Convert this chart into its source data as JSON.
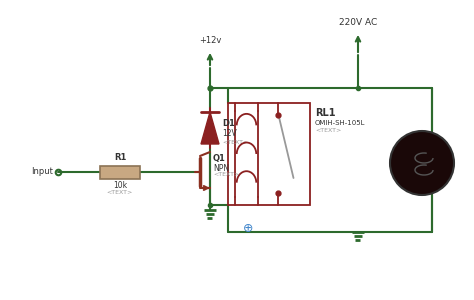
{
  "bg_color": "#ffffff",
  "dark_green": "#2d6a2d",
  "relay_red": "#8b2020",
  "resistor_color": "#c8a882",
  "resistor_edge": "#8b7355",
  "transistor_color": "#8b3020",
  "diode_color": "#8b2020",
  "ground_color": "#2d6a2d",
  "label_gray": "#999999",
  "text_dark": "#333333",
  "plus_color": "#4488cc",
  "v12_label": "+12v",
  "v220_label": "220V AC",
  "r1_label": "R1",
  "r1_val": "10k",
  "q1_label": "Q1",
  "q1_type": "NPN",
  "d1_label": "D1",
  "d1_val": "12V",
  "rl1_label": "RL1",
  "rl1_model": "OMIH-SH-105L",
  "input_label": "Input",
  "text_tag": "<TEXT>"
}
